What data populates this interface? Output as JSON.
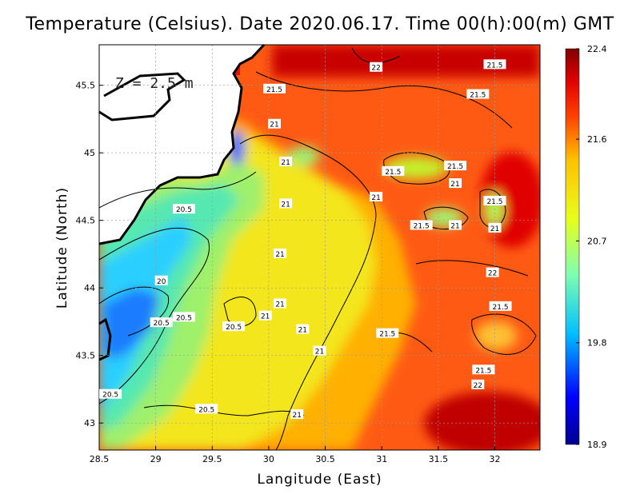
{
  "chart_data": {
    "type": "heatmap",
    "title": "Temperature (Celsius). Date 2020.06.17. Time 00(h):00(m)  GMT",
    "xlabel": "Langitude (East)",
    "ylabel": "Latitude (North)",
    "depth_label": "Z = 2.5 m",
    "xlim": [
      28.5,
      32.4
    ],
    "ylim": [
      42.8,
      45.8
    ],
    "x_ticks": [
      {
        "value": 28.5,
        "label": "28.5"
      },
      {
        "value": 29,
        "label": "29"
      },
      {
        "value": 29.5,
        "label": "29.5"
      },
      {
        "value": 30,
        "label": "30"
      },
      {
        "value": 30.5,
        "label": "30.5"
      },
      {
        "value": 31,
        "label": "31"
      },
      {
        "value": 31.5,
        "label": "31.5"
      },
      {
        "value": 32,
        "label": "32"
      }
    ],
    "y_ticks": [
      {
        "value": 43,
        "label": "43"
      },
      {
        "value": 43.5,
        "label": "43.5"
      },
      {
        "value": 44,
        "label": "44"
      },
      {
        "value": 44.5,
        "label": "44.5"
      },
      {
        "value": 45,
        "label": "45"
      },
      {
        "value": 45.5,
        "label": "45.5"
      }
    ],
    "colorbar": {
      "min": 18.9,
      "max": 22.4,
      "ticks": [
        {
          "value": 22.4,
          "label": "22.4"
        },
        {
          "value": 21.6,
          "label": "21.6"
        },
        {
          "value": 20.7,
          "label": "20.7"
        },
        {
          "value": 19.8,
          "label": "19.8"
        },
        {
          "value": 18.9,
          "label": "18.9"
        }
      ],
      "colors": [
        "#00008f",
        "#0000ff",
        "#00bfff",
        "#7fffb0",
        "#e6ff1a",
        "#ffc000",
        "#ff4000",
        "#e00000",
        "#800000"
      ]
    },
    "grid": true,
    "contour_levels": [
      20,
      20.5,
      21,
      21.5,
      22
    ],
    "contour_labels": [
      {
        "text": "22",
        "lon": 30.95,
        "lat": 45.63
      },
      {
        "text": "21.5",
        "lon": 32.0,
        "lat": 45.65
      },
      {
        "text": "21.5",
        "lon": 30.05,
        "lat": 45.47
      },
      {
        "text": "21.5",
        "lon": 31.85,
        "lat": 45.43
      },
      {
        "text": "21",
        "lon": 30.05,
        "lat": 45.21
      },
      {
        "text": "21",
        "lon": 30.15,
        "lat": 44.93
      },
      {
        "text": "21.5",
        "lon": 31.1,
        "lat": 44.86
      },
      {
        "text": "21.5",
        "lon": 31.65,
        "lat": 44.9
      },
      {
        "text": "21",
        "lon": 31.65,
        "lat": 44.77
      },
      {
        "text": "21",
        "lon": 30.95,
        "lat": 44.67
      },
      {
        "text": "21.5",
        "lon": 32.0,
        "lat": 44.64
      },
      {
        "text": "21",
        "lon": 30.15,
        "lat": 44.62
      },
      {
        "text": "20.5",
        "lon": 29.25,
        "lat": 44.58
      },
      {
        "text": "21.5",
        "lon": 31.35,
        "lat": 44.46
      },
      {
        "text": "21",
        "lon": 31.65,
        "lat": 44.46
      },
      {
        "text": "21",
        "lon": 32.0,
        "lat": 44.44
      },
      {
        "text": "21",
        "lon": 30.1,
        "lat": 44.25
      },
      {
        "text": "22",
        "lon": 31.98,
        "lat": 44.11
      },
      {
        "text": "20",
        "lon": 29.05,
        "lat": 44.05
      },
      {
        "text": "21",
        "lon": 30.1,
        "lat": 43.88
      },
      {
        "text": "21.5",
        "lon": 32.05,
        "lat": 43.86
      },
      {
        "text": "20.5",
        "lon": 29.25,
        "lat": 43.78
      },
      {
        "text": "20.5",
        "lon": 29.05,
        "lat": 43.74
      },
      {
        "text": "21",
        "lon": 29.97,
        "lat": 43.79
      },
      {
        "text": "20.5",
        "lon": 29.69,
        "lat": 43.71
      },
      {
        "text": "21",
        "lon": 30.3,
        "lat": 43.69
      },
      {
        "text": "21.5",
        "lon": 31.05,
        "lat": 43.66
      },
      {
        "text": "21",
        "lon": 30.45,
        "lat": 43.53
      },
      {
        "text": "21.5",
        "lon": 31.9,
        "lat": 43.39
      },
      {
        "text": "22",
        "lon": 31.85,
        "lat": 43.28
      },
      {
        "text": "20.5",
        "lon": 28.6,
        "lat": 43.21
      },
      {
        "text": "20.5",
        "lon": 29.45,
        "lat": 43.1
      },
      {
        "text": "21",
        "lon": 30.25,
        "lat": 43.06
      }
    ]
  }
}
